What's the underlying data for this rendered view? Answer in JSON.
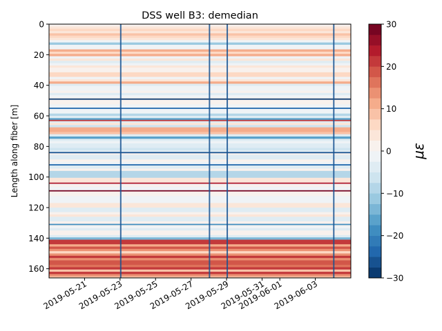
{
  "chart_data": {
    "type": "heatmap",
    "title": "DSS well B3: demedian",
    "xlabel": "",
    "ylabel": "Length along fiber [m]",
    "x_range": [
      "2019-05-19",
      "2019-06-05"
    ],
    "x_ticks": [
      "2019-05-21",
      "2019-05-23",
      "2019-05-25",
      "2019-05-27",
      "2019-05-29",
      "2019-05-31",
      "2019-06-01",
      "2019-06-03"
    ],
    "ylim": [
      166,
      0
    ],
    "y_ticks": [
      0,
      20,
      40,
      60,
      80,
      100,
      120,
      140,
      160
    ],
    "colorbar": {
      "label": "με",
      "min": -30,
      "max": 30,
      "ticks": [
        30,
        20,
        10,
        0,
        -10,
        -20,
        -30
      ],
      "colormap": "RdBu_r",
      "levels": 24
    },
    "bands": [
      {
        "from_m": 0,
        "to_m": 8,
        "value": 5
      },
      {
        "from_m": 14,
        "to_m": 20,
        "value": 6
      },
      {
        "from_m": 30,
        "to_m": 38,
        "value": 6
      },
      {
        "from_m": 64,
        "to_m": 72,
        "value": 7
      },
      {
        "from_m": 140,
        "to_m": 166,
        "value": 18
      }
    ],
    "lines": [
      {
        "at_m": 49,
        "value": -28
      },
      {
        "at_m": 55,
        "value": -24
      },
      {
        "at_m": 63,
        "value": 22
      },
      {
        "at_m": 84,
        "value": -26
      },
      {
        "at_m": 92,
        "value": -24
      },
      {
        "at_m": 104,
        "value": 24
      },
      {
        "at_m": 109,
        "value": 28
      },
      {
        "at_m": 131,
        "value": -20
      }
    ],
    "events": [
      "2019-05-23",
      "2019-05-28",
      "2019-05-29",
      "2019-06-04"
    ]
  }
}
